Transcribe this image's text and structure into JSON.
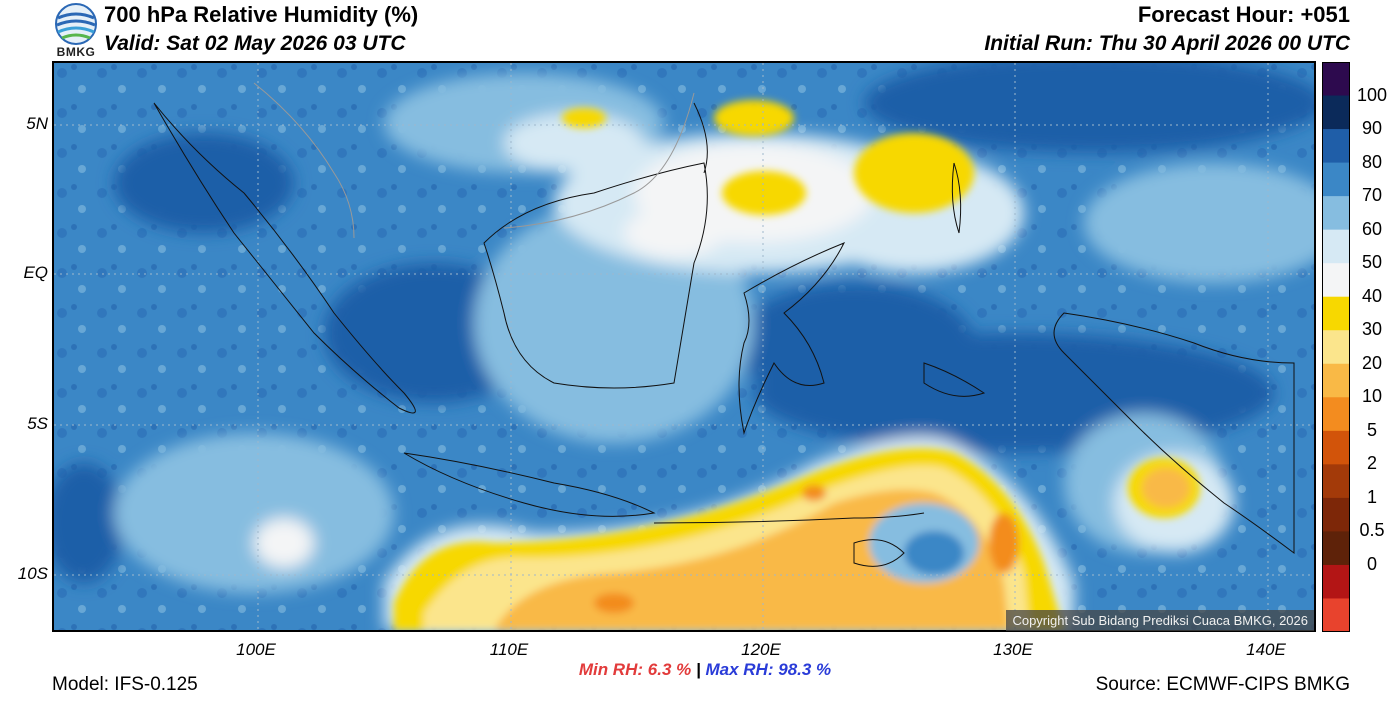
{
  "header": {
    "title": "700 hPa Relative Humidity (%)",
    "valid": "Valid: Sat 02 May 2026 03 UTC",
    "forecast_hour": "Forecast Hour: +051",
    "initial_run": "Initial Run: Thu 30 April 2026 00 UTC",
    "logo_text": "BMKG"
  },
  "map": {
    "lat_labels": [
      "5N",
      "EQ",
      "5S",
      "10S"
    ],
    "lon_labels": [
      "100E",
      "110E",
      "120E",
      "130E",
      "140E"
    ],
    "copyright": "Copyright Sub Bidang Prediksi Cuaca BMKG, 2026"
  },
  "colorbar": {
    "labels": [
      "100",
      "90",
      "80",
      "70",
      "60",
      "50",
      "40",
      "30",
      "20",
      "10",
      "5",
      "2",
      "1",
      "0.5",
      "0"
    ],
    "colors": [
      "#2d0a4e",
      "#0b2a5a",
      "#1f5ea8",
      "#3b87c6",
      "#86bde0",
      "#d6e9f4",
      "#f4f5f6",
      "#f7d800",
      "#fbe58c",
      "#f9b946",
      "#f38c1f",
      "#d2540a",
      "#a33a09",
      "#7d2708",
      "#5e2209",
      "#b31515",
      "#e8432d"
    ]
  },
  "stats": {
    "min_label": "Min RH:",
    "min_value": "6.3 %",
    "separator": "|",
    "max_label": "Max RH:",
    "max_value": "98.3 %"
  },
  "footer": {
    "model": "Model: IFS-0.125",
    "source": "Source: ECMWF-CIPS BMKG"
  }
}
